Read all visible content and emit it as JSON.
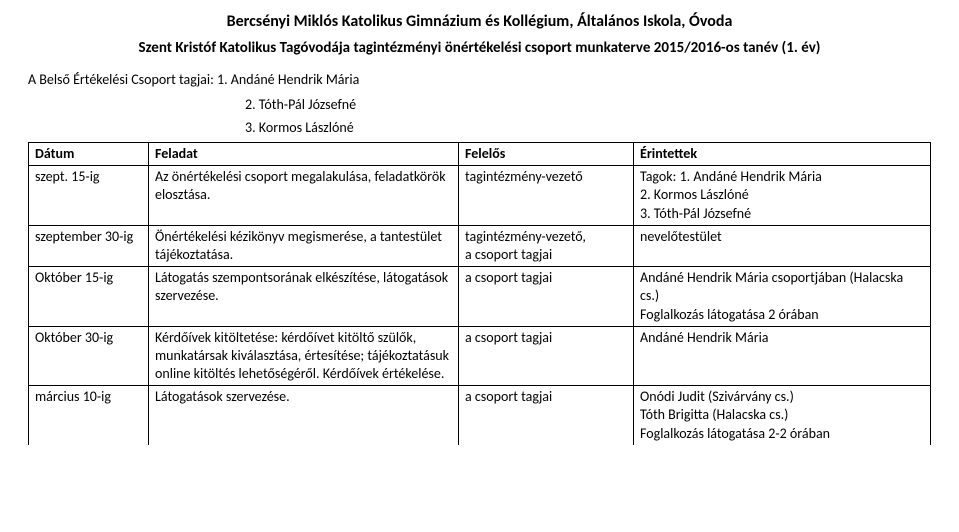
{
  "header": {
    "title": "Bercsényi Miklós Katolikus Gimnázium és Kollégium, Általános Iskola, Óvoda",
    "subtitle": "Szent Kristóf Katolikus Tagóvodája tagintézményi önértékelési csoport munkaterve 2015/2016-os tanév  (1. év)",
    "members_label": "A Belső Értékelési Csoport tagjai:",
    "member1": "1. Andáné Hendrik Mária",
    "member2": "2. Tóth-Pál Józsefné",
    "member3": "3. Kormos Lászlóné"
  },
  "table": {
    "headers": {
      "date": "Dátum",
      "task": "Feladat",
      "responsible": "Felelős",
      "involved": "Érintettek"
    },
    "rows": {
      "r1": {
        "date": "szept. 15-ig",
        "task": "Az önértékelési csoport megalakulása, feladatkörök elosztása.",
        "responsible": "tagintézmény-vezető",
        "involved": "Tagok:   1. Andáné Hendrik Mária\n               2. Kormos Lászlóné\n               3. Tóth-Pál Józsefné"
      },
      "r2": {
        "date": "szeptember 30-ig",
        "task": "Önértékelési kézikönyv megismerése, a tantestület tájékoztatása.",
        "responsible": "tagintézmény-vezető,\na csoport tagjai",
        "involved": "nevelőtestület"
      },
      "r3": {
        "date": "Október 15-ig",
        "task": "Látogatás szempontsorának elkészítése, látogatások szervezése.",
        "responsible": "a csoport tagjai",
        "involved": "Andáné Hendrik Mária csoportjában (Halacska cs.)\nFoglalkozás látogatása 2 órában"
      },
      "r4": {
        "date": "Október 30-ig",
        "task": "Kérdőívek kitöltetése: kérdőívet kitöltő szülők, munkatársak kiválasztása, értesítése; tájékoztatásuk online kitöltés lehetőségéről. Kérdőívek értékelése.",
        "responsible": "a csoport tagjai",
        "involved": "Andáné Hendrik Mária"
      },
      "r5": {
        "date": "március 10-ig",
        "task": "Látogatások szervezése.",
        "responsible": "a csoport tagjai",
        "involved": "Onódi Judit (Szivárvány cs.)\nTóth Brigitta (Halacska cs.)\nFoglalkozás látogatása 2-2 órában"
      }
    }
  }
}
